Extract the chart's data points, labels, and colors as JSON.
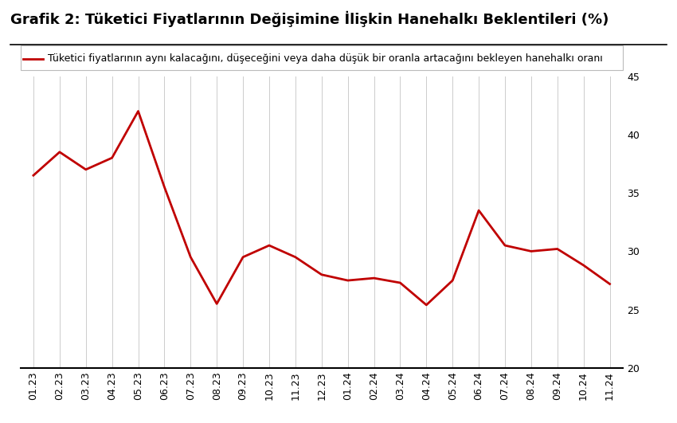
{
  "title": "Grafik 2: Tüketici Fiyatlarının Değişimine İlişkin Hanehalkı Beklentileri (%)",
  "legend_label": "Tüketici fiyatlarının aynı kalacağını, düşeceğini veya daha düşük bir oranla artacağını bekleyen hanehalkı oranı",
  "x_labels": [
    "01.23",
    "02.23",
    "03.23",
    "04.23",
    "05.23",
    "06.23",
    "07.23",
    "08.23",
    "09.23",
    "10.23",
    "11.23",
    "12.23",
    "01.24",
    "02.24",
    "03.24",
    "04.24",
    "05.24",
    "06.24",
    "07.24",
    "08.24",
    "09.24",
    "10.24",
    "11.24"
  ],
  "y_values": [
    36.5,
    38.5,
    37.0,
    38.0,
    42.0,
    35.5,
    29.5,
    25.5,
    29.5,
    30.5,
    29.5,
    28.0,
    27.5,
    27.7,
    27.3,
    25.4,
    27.5,
    33.5,
    30.5,
    30.0,
    30.2,
    28.8,
    27.2
  ],
  "ylim": [
    20,
    45
  ],
  "yticks": [
    20,
    25,
    30,
    35,
    40,
    45
  ],
  "line_color": "#c00000",
  "line_width": 2.0,
  "background_color": "#ffffff",
  "grid_color": "#cccccc",
  "title_fontsize": 13,
  "legend_fontsize": 9.0,
  "tick_fontsize": 9
}
